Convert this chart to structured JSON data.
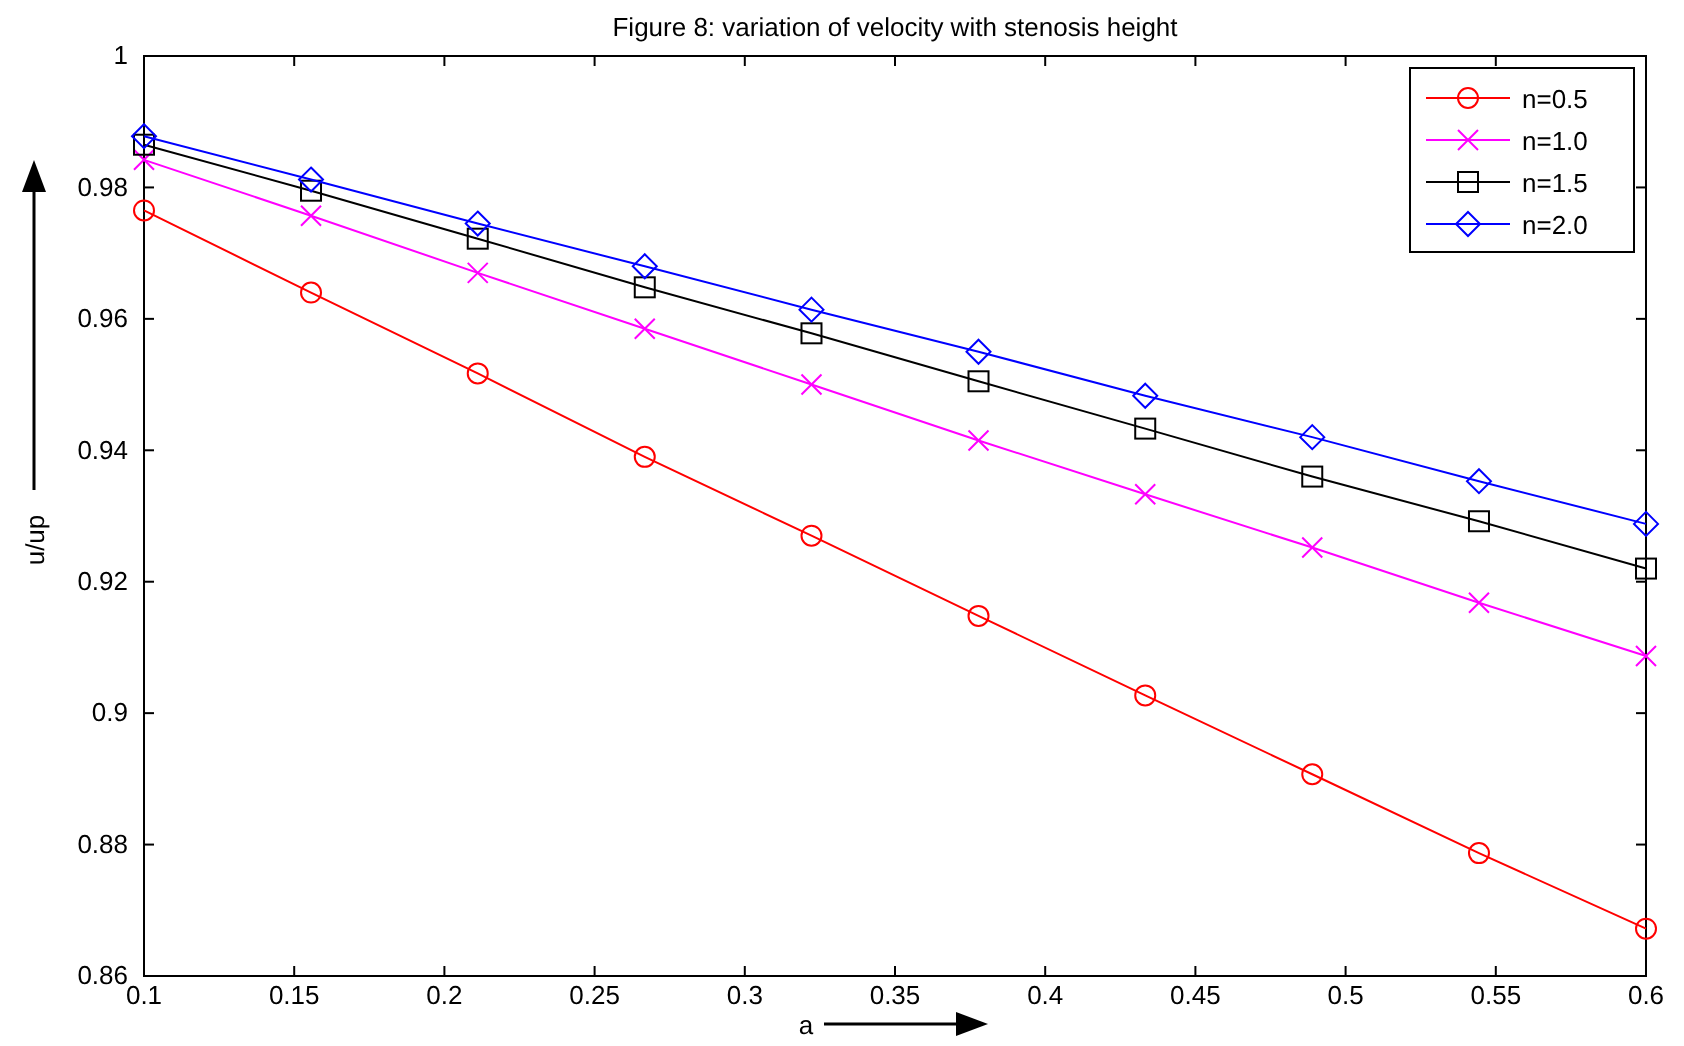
{
  "chart_data": {
    "type": "line",
    "title": "Figure 8: variation of velocity with stenosis height",
    "xlabel": "a",
    "ylabel": "u/up",
    "x": [
      0.1,
      0.1556,
      0.2111,
      0.2667,
      0.3222,
      0.3778,
      0.4333,
      0.4889,
      0.5444,
      0.6
    ],
    "series": [
      {
        "name": "n=0.5",
        "color": "#ff0000",
        "marker": "circle",
        "values": [
          0.9765,
          0.964,
          0.9517,
          0.939,
          0.927,
          0.9148,
          0.9027,
          0.8907,
          0.8787,
          0.8672
        ]
      },
      {
        "name": "n=1.0",
        "color": "#ff00ff",
        "marker": "cross",
        "values": [
          0.9842,
          0.9757,
          0.967,
          0.9585,
          0.95,
          0.9415,
          0.9333,
          0.9252,
          0.9168,
          0.9087
        ]
      },
      {
        "name": "n=1.5",
        "color": "#000000",
        "marker": "square",
        "values": [
          0.9865,
          0.9795,
          0.9722,
          0.9648,
          0.9578,
          0.9505,
          0.9433,
          0.936,
          0.9292,
          0.922
        ]
      },
      {
        "name": "n=2.0",
        "color": "#0000ff",
        "marker": "diamond",
        "values": [
          0.9878,
          0.9812,
          0.9745,
          0.968,
          0.9614,
          0.955,
          0.9483,
          0.942,
          0.9353,
          0.9288
        ]
      }
    ],
    "xlim": [
      0.1,
      0.6
    ],
    "xticks": [
      0.1,
      0.15,
      0.2,
      0.25,
      0.3,
      0.35,
      0.4,
      0.45,
      0.5,
      0.55,
      0.6
    ],
    "ylim": [
      0.86,
      1
    ],
    "yticks": [
      0.86,
      0.88,
      0.9,
      0.92,
      0.94,
      0.96,
      0.98,
      1
    ],
    "grid": false,
    "legend": "top right",
    "line_style": "solid"
  }
}
